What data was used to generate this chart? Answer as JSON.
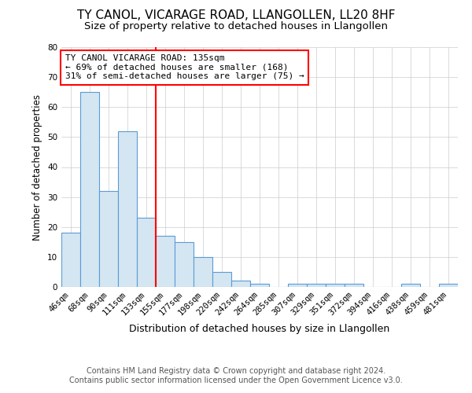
{
  "title": "TY CANOL, VICARAGE ROAD, LLANGOLLEN, LL20 8HF",
  "subtitle": "Size of property relative to detached houses in Llangollen",
  "xlabel": "Distribution of detached houses by size in Llangollen",
  "ylabel": "Number of detached properties",
  "footnote1": "Contains HM Land Registry data © Crown copyright and database right 2024.",
  "footnote2": "Contains public sector information licensed under the Open Government Licence v3.0.",
  "categories": [
    "46sqm",
    "68sqm",
    "90sqm",
    "111sqm",
    "133sqm",
    "155sqm",
    "177sqm",
    "198sqm",
    "220sqm",
    "242sqm",
    "264sqm",
    "285sqm",
    "307sqm",
    "329sqm",
    "351sqm",
    "372sqm",
    "394sqm",
    "416sqm",
    "438sqm",
    "459sqm",
    "481sqm"
  ],
  "values": [
    18,
    65,
    32,
    52,
    23,
    17,
    15,
    10,
    5,
    2,
    1,
    0,
    1,
    1,
    1,
    1,
    0,
    0,
    1,
    0,
    1
  ],
  "bar_color": "#d4e6f1",
  "bar_edge_color": "#5b9bd5",
  "red_line_x": 4.5,
  "ylim": [
    0,
    80
  ],
  "yticks": [
    0,
    10,
    20,
    30,
    40,
    50,
    60,
    70,
    80
  ],
  "annotation_title": "TY CANOL VICARAGE ROAD: 135sqm",
  "annotation_line1": "← 69% of detached houses are smaller (168)",
  "annotation_line2": "31% of semi-detached houses are larger (75) →",
  "title_fontsize": 11,
  "subtitle_fontsize": 9.5,
  "xlabel_fontsize": 9,
  "ylabel_fontsize": 8.5,
  "tick_fontsize": 7.5,
  "annotation_fontsize": 8,
  "footnote_fontsize": 7
}
